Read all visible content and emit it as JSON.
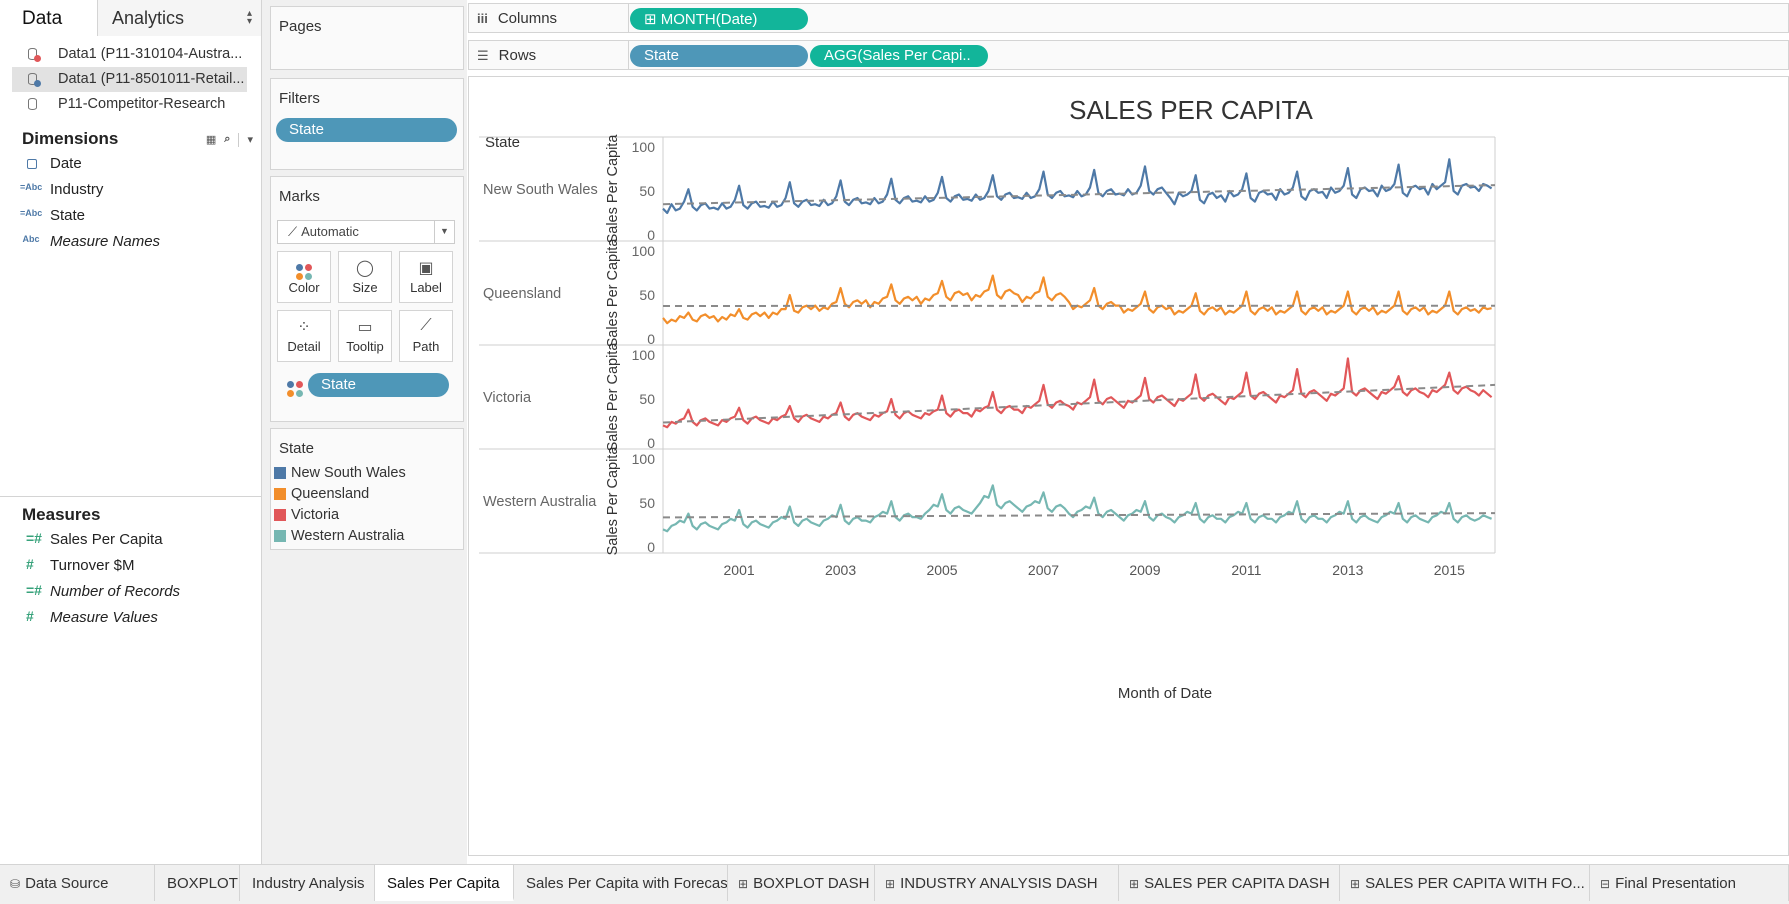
{
  "data_pane": {
    "tabs": [
      "Data",
      "Analytics"
    ],
    "data_sources": [
      "Data1 (P11-310104-Austra...",
      "Data1 (P11-8501011-Retail...",
      "P11-Competitor-Research"
    ],
    "dimensions_title": "Dimensions",
    "dimensions": [
      "Date",
      "Industry",
      "State",
      "Measure Names"
    ],
    "measures_title": "Measures",
    "measures": [
      "Sales Per Capita",
      "Turnover $M",
      "Number of Records",
      "Measure Values"
    ]
  },
  "cards": {
    "pages_title": "Pages",
    "filters_title": "Filters",
    "filter_pill": "State",
    "marks_title": "Marks",
    "marks_type": "Automatic",
    "mark_buttons": [
      "Color",
      "Size",
      "Label",
      "Detail",
      "Tooltip",
      "Path"
    ],
    "marks_pill": "State",
    "legend_title": "State",
    "legend": [
      {
        "name": "New South Wales",
        "color": "#4e79a7"
      },
      {
        "name": "Queensland",
        "color": "#f28e2b"
      },
      {
        "name": "Victoria",
        "color": "#e15759"
      },
      {
        "name": "Western Australia",
        "color": "#76b7b2"
      }
    ]
  },
  "shelves": {
    "columns_label": "Columns",
    "columns_pill": "MONTH(Date)",
    "rows_label": "Rows",
    "rows_pills": [
      "State",
      "AGG(Sales Per Capi.."
    ]
  },
  "chart_data": {
    "type": "line",
    "title": "SALES PER CAPITA",
    "row_header": "State",
    "xlabel": "Month of Date",
    "ylabel": "Sales Per Capita",
    "x_ticks": [
      "2001",
      "2003",
      "2005",
      "2007",
      "2009",
      "2011",
      "2013",
      "2015"
    ],
    "x_range": [
      2000.0,
      2016.4
    ],
    "ylim": [
      0,
      100
    ],
    "y_ticks": [
      0,
      50,
      100
    ],
    "trend_line": true,
    "trend_style": "dashed-gray",
    "series": [
      {
        "name": "New South Wales",
        "color": "#4e79a7",
        "values": [
          30,
          25,
          35,
          28,
          30,
          38,
          52,
          32,
          28,
          34,
          36,
          30,
          31,
          29,
          36,
          30,
          32,
          40,
          56,
          34,
          30,
          36,
          38,
          32,
          33,
          31,
          38,
          32,
          34,
          42,
          60,
          36,
          32,
          38,
          40,
          34,
          35,
          33,
          40,
          34,
          36,
          44,
          62,
          38,
          34,
          40,
          42,
          36,
          37,
          35,
          42,
          36,
          38,
          46,
          64,
          40,
          36,
          42,
          44,
          38,
          39,
          37,
          44,
          38,
          40,
          48,
          66,
          42,
          38,
          44,
          46,
          40,
          41,
          39,
          46,
          40,
          42,
          50,
          68,
          44,
          40,
          46,
          48,
          42,
          43,
          41,
          48,
          42,
          44,
          52,
          72,
          46,
          42,
          48,
          50,
          44,
          45,
          43,
          50,
          44,
          46,
          54,
          74,
          48,
          44,
          50,
          52,
          46,
          47,
          45,
          52,
          46,
          48,
          56,
          78,
          50,
          46,
          52,
          54,
          48,
          42,
          35,
          48,
          44,
          46,
          50,
          68,
          40,
          36,
          46,
          48,
          42,
          45,
          38,
          50,
          44,
          46,
          52,
          70,
          42,
          38,
          48,
          50,
          46,
          47,
          40,
          52,
          46,
          48,
          54,
          72,
          44,
          40,
          50,
          52,
          48,
          49,
          42,
          54,
          48,
          50,
          56,
          76,
          46,
          42,
          52,
          54,
          50,
          51,
          44,
          56,
          50,
          52,
          58,
          80,
          48,
          44,
          54,
          56,
          52,
          54,
          46,
          58,
          52,
          56,
          60,
          86,
          50,
          46,
          56,
          58,
          54,
          55,
          50,
          58,
          56,
          53
        ]
      },
      {
        "name": "Queensland",
        "color": "#f28e2b",
        "values": [
          24,
          18,
          22,
          20,
          26,
          24,
          30,
          22,
          20,
          26,
          28,
          24,
          26,
          20,
          25,
          22,
          28,
          26,
          34,
          24,
          22,
          28,
          30,
          26,
          30,
          24,
          30,
          28,
          34,
          34,
          50,
          32,
          30,
          36,
          38,
          34,
          38,
          32,
          36,
          34,
          40,
          42,
          58,
          40,
          36,
          42,
          44,
          40,
          44,
          36,
          42,
          40,
          46,
          48,
          62,
          44,
          40,
          46,
          48,
          44,
          48,
          40,
          46,
          44,
          50,
          52,
          66,
          48,
          44,
          52,
          54,
          50,
          52,
          44,
          50,
          48,
          54,
          56,
          72,
          50,
          46,
          54,
          56,
          52,
          50,
          42,
          48,
          46,
          52,
          54,
          70,
          48,
          44,
          50,
          52,
          48,
          42,
          34,
          38,
          36,
          40,
          44,
          58,
          38,
          34,
          40,
          42,
          38,
          38,
          30,
          34,
          32,
          36,
          40,
          54,
          34,
          30,
          36,
          38,
          34,
          36,
          28,
          32,
          30,
          34,
          38,
          52,
          32,
          28,
          34,
          36,
          32,
          36,
          28,
          32,
          30,
          34,
          38,
          54,
          32,
          28,
          34,
          36,
          32,
          36,
          28,
          32,
          30,
          34,
          38,
          54,
          32,
          28,
          34,
          36,
          32,
          36,
          28,
          32,
          30,
          34,
          38,
          54,
          32,
          28,
          34,
          36,
          32,
          36,
          28,
          32,
          30,
          34,
          38,
          54,
          32,
          28,
          34,
          36,
          32,
          36,
          28,
          32,
          30,
          34,
          38,
          54,
          32,
          28,
          34,
          36,
          32,
          34,
          30,
          36,
          34,
          35
        ]
      },
      {
        "name": "Victoria",
        "color": "#e15759",
        "values": [
          20,
          18,
          24,
          22,
          26,
          28,
          38,
          24,
          20,
          26,
          28,
          24,
          22,
          20,
          26,
          24,
          28,
          30,
          40,
          26,
          22,
          28,
          30,
          26,
          24,
          22,
          28,
          26,
          30,
          32,
          42,
          28,
          24,
          30,
          32,
          28,
          26,
          24,
          30,
          28,
          32,
          34,
          46,
          30,
          26,
          32,
          34,
          30,
          28,
          26,
          32,
          30,
          34,
          36,
          50,
          32,
          28,
          34,
          36,
          32,
          30,
          28,
          34,
          32,
          36,
          38,
          54,
          34,
          30,
          36,
          38,
          34,
          34,
          30,
          38,
          36,
          40,
          42,
          58,
          38,
          34,
          40,
          42,
          38,
          38,
          34,
          42,
          40,
          44,
          48,
          66,
          44,
          40,
          46,
          48,
          44,
          42,
          38,
          46,
          44,
          48,
          52,
          72,
          48,
          44,
          50,
          52,
          48,
          44,
          40,
          48,
          46,
          50,
          54,
          74,
          50,
          46,
          52,
          54,
          50,
          46,
          42,
          50,
          48,
          52,
          56,
          78,
          52,
          48,
          54,
          56,
          52,
          48,
          44,
          52,
          50,
          54,
          58,
          80,
          54,
          50,
          56,
          58,
          54,
          50,
          46,
          54,
          52,
          56,
          60,
          84,
          56,
          52,
          58,
          60,
          56,
          52,
          48,
          56,
          54,
          58,
          62,
          96,
          58,
          54,
          60,
          62,
          58,
          54,
          50,
          58,
          56,
          60,
          64,
          76,
          58,
          54,
          60,
          62,
          58,
          56,
          52,
          60,
          58,
          62,
          66,
          80,
          60,
          56,
          62,
          64,
          60,
          58,
          54,
          60,
          56,
          52
        ]
      },
      {
        "name": "Western Australia",
        "color": "#76b7b2",
        "values": [
          20,
          18,
          24,
          26,
          30,
          28,
          38,
          24,
          20,
          26,
          28,
          24,
          22,
          20,
          26,
          28,
          32,
          30,
          42,
          26,
          22,
          28,
          30,
          26,
          24,
          22,
          28,
          30,
          34,
          32,
          46,
          28,
          24,
          30,
          32,
          28,
          26,
          24,
          30,
          32,
          36,
          34,
          48,
          30,
          26,
          32,
          34,
          30,
          30,
          28,
          34,
          36,
          40,
          38,
          52,
          34,
          30,
          36,
          38,
          34,
          34,
          32,
          38,
          42,
          48,
          46,
          60,
          42,
          38,
          44,
          46,
          42,
          40,
          38,
          44,
          50,
          58,
          56,
          70,
          48,
          44,
          50,
          52,
          48,
          44,
          40,
          46,
          48,
          52,
          50,
          62,
          44,
          40,
          46,
          48,
          44,
          38,
          34,
          40,
          42,
          46,
          44,
          56,
          38,
          34,
          40,
          42,
          38,
          34,
          30,
          36,
          38,
          42,
          40,
          52,
          34,
          30,
          36,
          38,
          34,
          32,
          28,
          34,
          36,
          40,
          38,
          50,
          32,
          28,
          34,
          36,
          32,
          32,
          28,
          34,
          36,
          40,
          38,
          50,
          32,
          28,
          34,
          36,
          32,
          32,
          28,
          34,
          36,
          40,
          38,
          52,
          32,
          28,
          34,
          36,
          32,
          32,
          28,
          34,
          36,
          40,
          38,
          52,
          32,
          28,
          34,
          36,
          32,
          30,
          28,
          34,
          36,
          40,
          38,
          50,
          32,
          28,
          34,
          36,
          32,
          30,
          28,
          34,
          36,
          40,
          38,
          50,
          32,
          28,
          34,
          36,
          32,
          30,
          32,
          36,
          34,
          32
        ]
      }
    ]
  },
  "sheet_tabs": [
    {
      "label": "Data Source",
      "icon": "database-icon",
      "active": false
    },
    {
      "label": "BOXPLOT",
      "icon": "",
      "active": false
    },
    {
      "label": "Industry Analysis",
      "icon": "",
      "active": false
    },
    {
      "label": "Sales Per Capita",
      "icon": "",
      "active": true
    },
    {
      "label": "Sales Per Capita with Forecast",
      "icon": "",
      "active": false
    },
    {
      "label": "BOXPLOT DASH",
      "icon": "dashboard-icon",
      "active": false
    },
    {
      "label": "INDUSTRY ANALYSIS DASH",
      "icon": "dashboard-icon",
      "active": false
    },
    {
      "label": "SALES PER CAPITA DASH",
      "icon": "dashboard-icon",
      "active": false
    },
    {
      "label": "SALES PER CAPITA WITH FO...",
      "icon": "dashboard-icon",
      "active": false
    },
    {
      "label": "Final Presentation",
      "icon": "story-icon",
      "active": false
    }
  ]
}
